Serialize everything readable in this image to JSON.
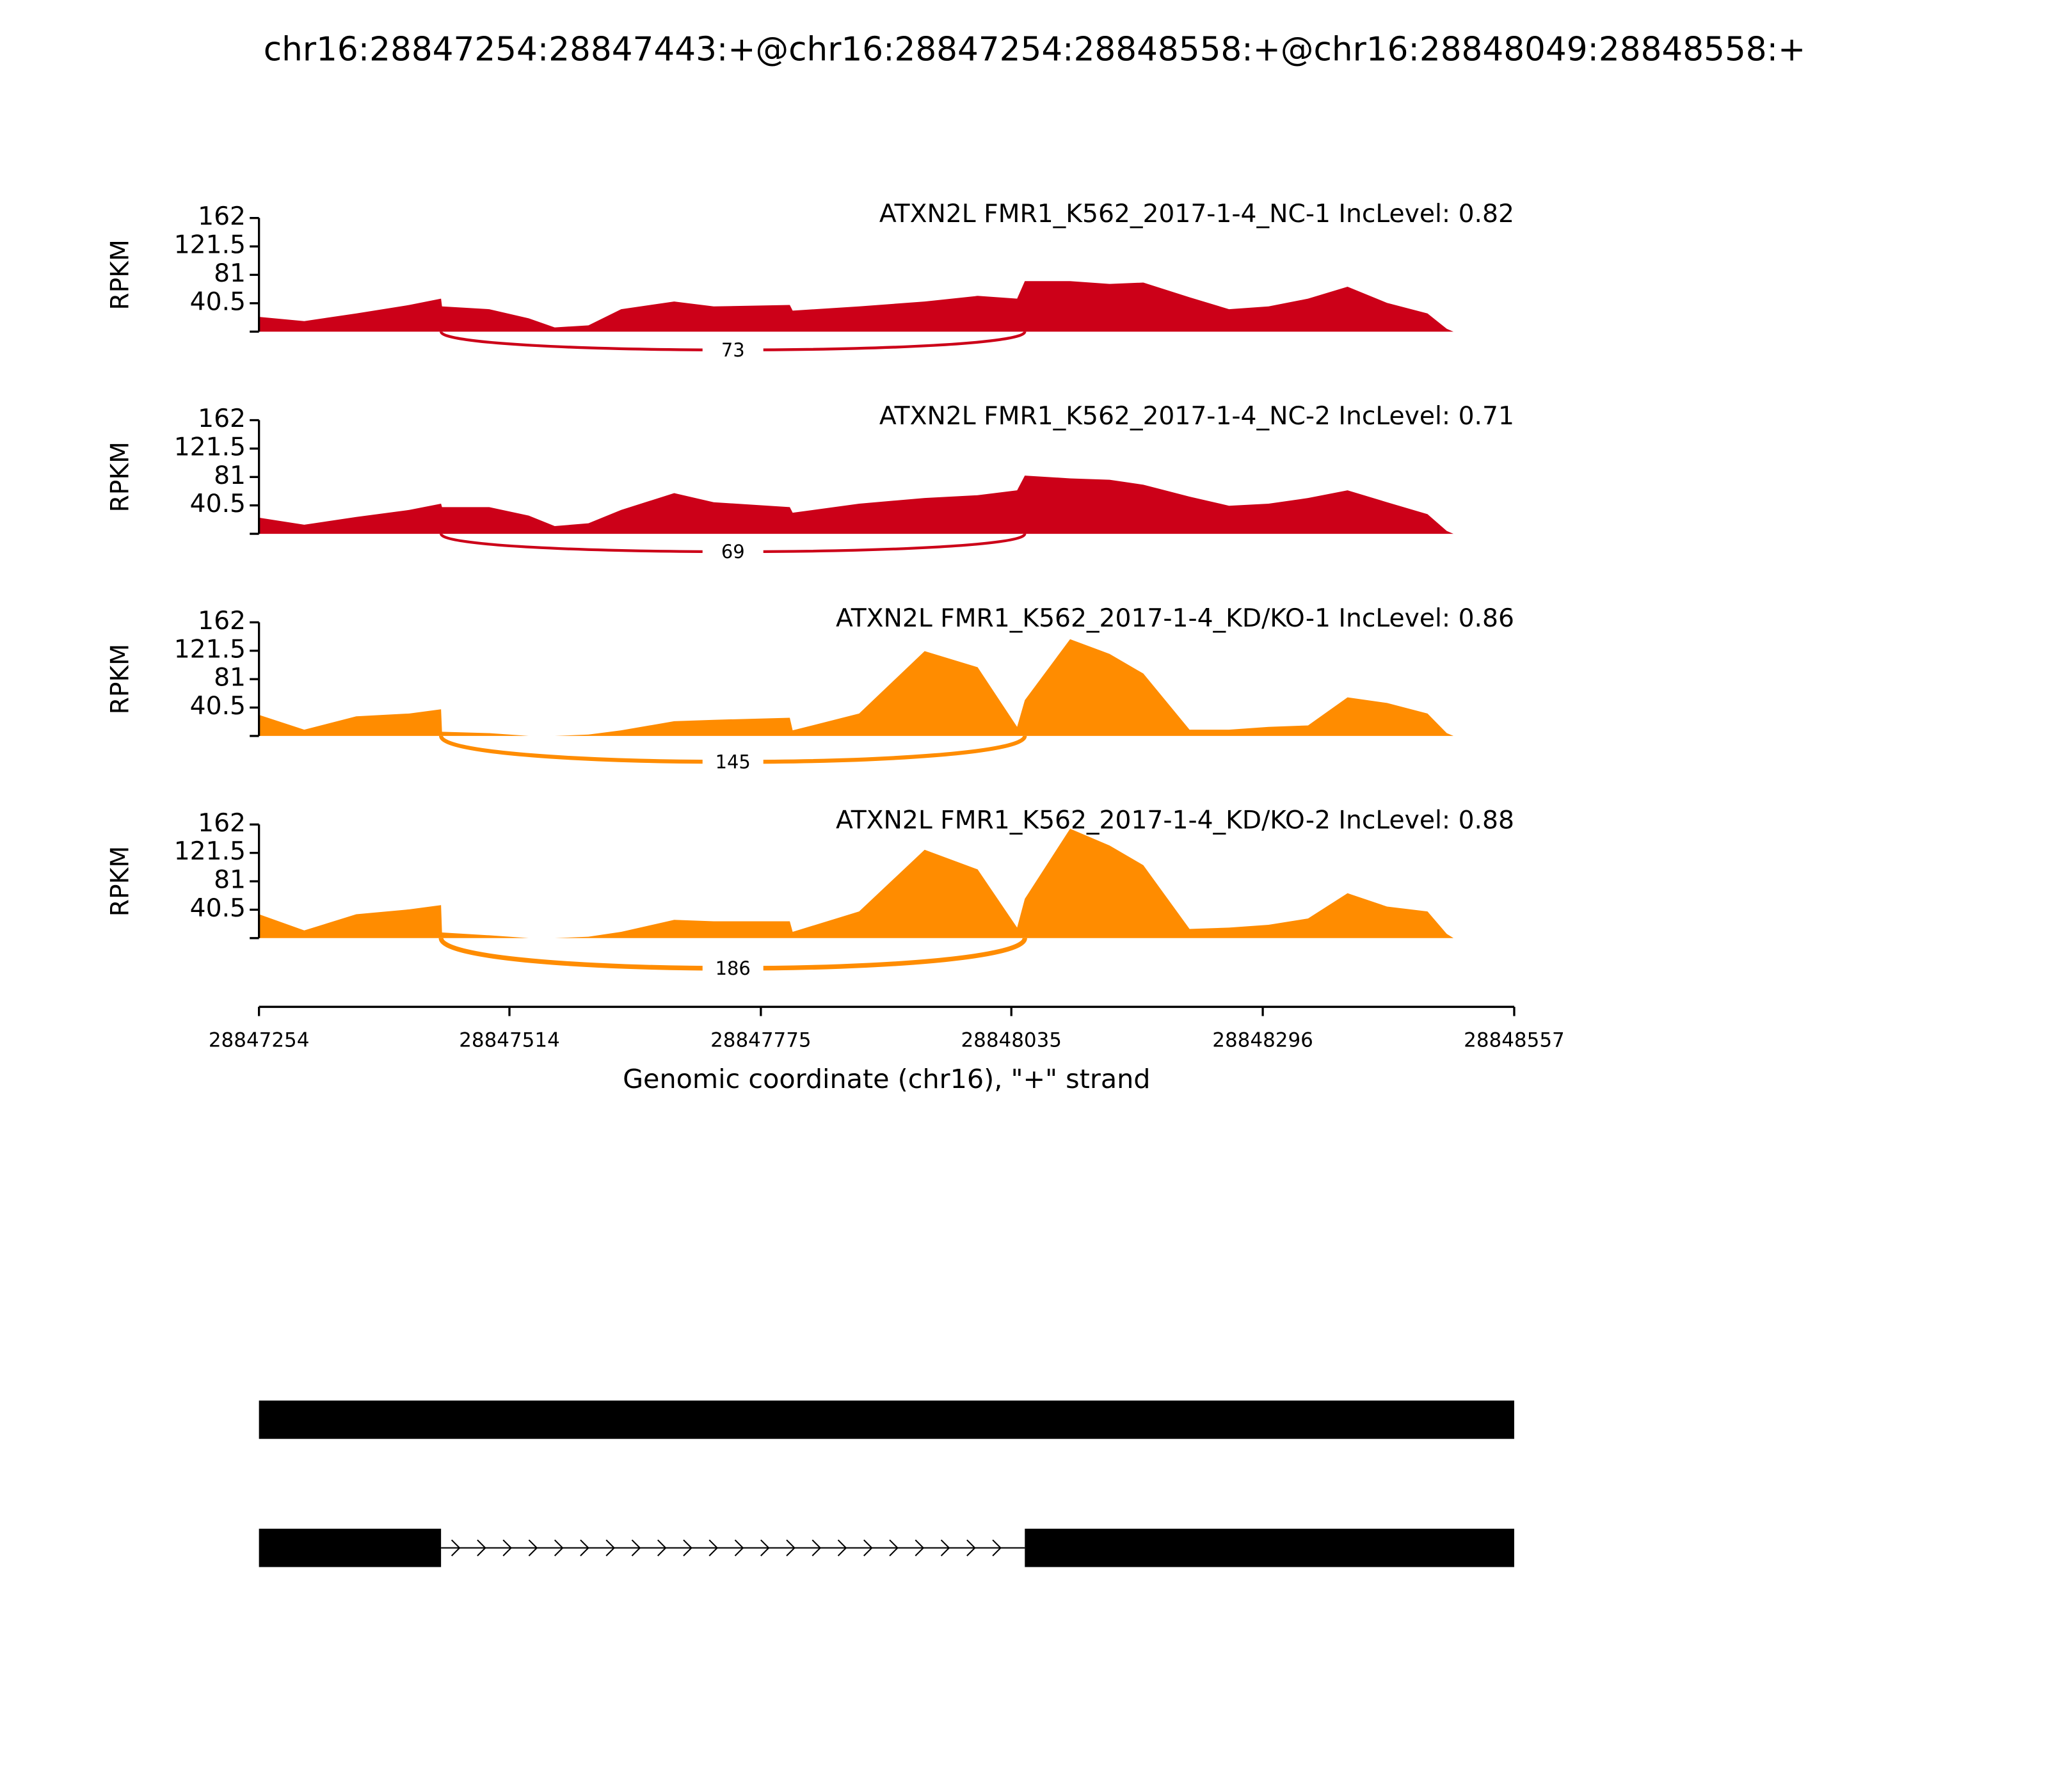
{
  "title": "chr16:28847254:28847443:+@chr16:28847254:28848558:+@chr16:28848049:28848558:+",
  "chart_data": [
    {
      "type": "area",
      "title": "ATXN2L FMR1_K562_2017-1-4_NC-1 IncLevel: 0.82",
      "color": "#cc0018",
      "ylabel": "RPKM",
      "x": [
        28847254,
        28847301,
        28847355,
        28847410,
        28847443,
        28847444,
        28847493,
        28847534,
        28847561,
        28847596,
        28847630,
        28847685,
        28847726,
        28847805,
        28847808,
        28847877,
        28847945,
        28848000,
        28848041,
        28848049,
        28848096,
        28848137,
        28848172,
        28848220,
        28848261,
        28848302,
        28848343,
        28848384,
        28848425,
        28848467,
        28848487,
        28848494,
        28848557
      ],
      "values": [
        21,
        15,
        26,
        38,
        47,
        36,
        32,
        19,
        6,
        9,
        32,
        43,
        36,
        38,
        30,
        36,
        43,
        51,
        47,
        72,
        72,
        68,
        70,
        49,
        32,
        36,
        47,
        64,
        41,
        26,
        4,
        0,
        0
      ],
      "xlim": [
        28847254,
        28848557
      ],
      "ylim": [
        0,
        162
      ],
      "yticks": [
        40.5,
        81,
        121.5,
        162
      ],
      "junction": {
        "start": 28847443,
        "end": 28848049,
        "count": 73
      }
    },
    {
      "type": "area",
      "title": "ATXN2L FMR1_K562_2017-1-4_NC-2 IncLevel: 0.71",
      "color": "#cc0018",
      "ylabel": "RPKM",
      "x": [
        28847254,
        28847301,
        28847355,
        28847410,
        28847443,
        28847444,
        28847493,
        28847534,
        28847561,
        28847596,
        28847630,
        28847685,
        28847726,
        28847805,
        28847808,
        28847877,
        28847945,
        28848000,
        28848041,
        28848049,
        28848096,
        28848137,
        28848172,
        28848220,
        28848261,
        28848302,
        28848343,
        28848384,
        28848425,
        28848467,
        28848487,
        28848494,
        28848557
      ],
      "values": [
        23,
        13,
        24,
        34,
        43,
        38,
        38,
        26,
        11,
        15,
        34,
        58,
        45,
        38,
        30,
        43,
        51,
        55,
        62,
        83,
        79,
        77,
        70,
        53,
        40,
        43,
        51,
        62,
        45,
        28,
        4,
        0,
        0
      ],
      "xlim": [
        28847254,
        28848557
      ],
      "ylim": [
        0,
        162
      ],
      "yticks": [
        40.5,
        81,
        121.5,
        162
      ],
      "junction": {
        "start": 28847443,
        "end": 28848049,
        "count": 69
      }
    },
    {
      "type": "area",
      "title": "ATXN2L FMR1_K562_2017-1-4_KD/KO-1 IncLevel: 0.86",
      "color": "#ff8c00",
      "ylabel": "RPKM",
      "x": [
        28847254,
        28847301,
        28847355,
        28847410,
        28847443,
        28847444,
        28847493,
        28847534,
        28847561,
        28847596,
        28847630,
        28847685,
        28847726,
        28847805,
        28847808,
        28847877,
        28847945,
        28848000,
        28848041,
        28848049,
        28848096,
        28848137,
        28848172,
        28848220,
        28848261,
        28848302,
        28848343,
        28848384,
        28848425,
        28848467,
        28848487,
        28848494,
        28848557
      ],
      "values": [
        30,
        9,
        28,
        32,
        38,
        6,
        4,
        0,
        0,
        2,
        8,
        21,
        23,
        26,
        8,
        32,
        121,
        98,
        13,
        51,
        138,
        117,
        89,
        9,
        9,
        13,
        15,
        55,
        47,
        32,
        4,
        0,
        0
      ],
      "xlim": [
        28847254,
        28848557
      ],
      "ylim": [
        0,
        162
      ],
      "yticks": [
        40.5,
        81,
        121.5,
        162
      ],
      "junction": {
        "start": 28847443,
        "end": 28848049,
        "count": 145
      }
    },
    {
      "type": "area",
      "title": "ATXN2L FMR1_K562_2017-1-4_KD/KO-2 IncLevel: 0.88",
      "color": "#ff8c00",
      "ylabel": "RPKM",
      "x": [
        28847254,
        28847301,
        28847355,
        28847410,
        28847443,
        28847444,
        28847493,
        28847534,
        28847561,
        28847596,
        28847630,
        28847685,
        28847726,
        28847805,
        28847808,
        28847877,
        28847945,
        28848000,
        28848041,
        28848049,
        28848096,
        28848137,
        28848172,
        28848220,
        28848261,
        28848302,
        28848343,
        28848384,
        28848425,
        28848467,
        28848487,
        28848494,
        28848557
      ],
      "values": [
        34,
        11,
        34,
        41,
        47,
        8,
        4,
        0,
        0,
        2,
        9,
        26,
        24,
        24,
        9,
        38,
        126,
        98,
        15,
        56,
        156,
        132,
        104,
        13,
        15,
        19,
        28,
        64,
        45,
        38,
        6,
        0,
        0
      ],
      "xlim": [
        28847254,
        28848557
      ],
      "ylim": [
        0,
        162
      ],
      "yticks": [
        40.5,
        81,
        121.5,
        162
      ],
      "xticks": [
        28847254,
        28847514,
        28847775,
        28848035,
        28848296,
        28848557
      ],
      "xlabel": "Genomic coordinate (chr16), \"+\" strand",
      "junction": {
        "start": 28847443,
        "end": 28848049,
        "count": 186
      }
    }
  ],
  "gene_model": {
    "xlim": [
      28847254,
      28848557
    ],
    "transcripts": [
      {
        "exons": [
          [
            28847254,
            28848557
          ]
        ]
      },
      {
        "exons": [
          [
            28847254,
            28847443
          ],
          [
            28848049,
            28848557
          ]
        ]
      }
    ]
  }
}
